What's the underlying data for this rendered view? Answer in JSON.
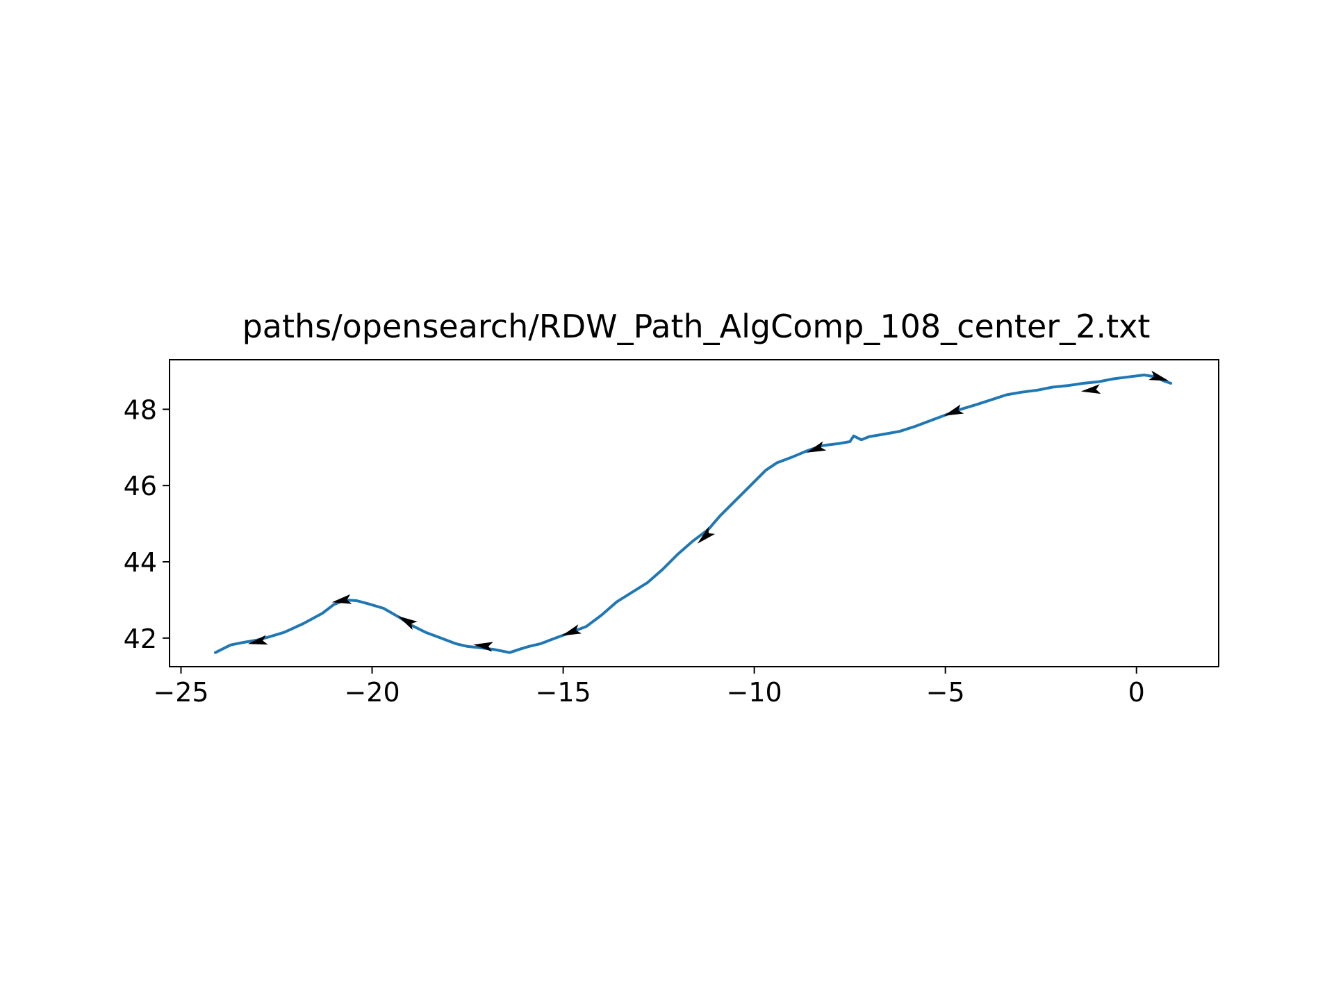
{
  "chart_data": {
    "type": "line",
    "title": "paths/opensearch/RDW_Path_AlgComp_108_center_2.txt",
    "xlabel": "",
    "ylabel": "",
    "xlim": [
      -25.3,
      2.15
    ],
    "ylim": [
      41.25,
      49.3
    ],
    "grid": false,
    "xticks": [
      -25,
      -20,
      -15,
      -10,
      -5,
      0
    ],
    "xtick_labels": [
      "−25",
      "−20",
      "−15",
      "−10",
      "−5",
      "0"
    ],
    "yticks": [
      42,
      44,
      46,
      48
    ],
    "ytick_labels": [
      "42",
      "44",
      "46",
      "48"
    ],
    "colors": {
      "line": "#1f77b4",
      "arrow": "#000000",
      "axes": "#000000",
      "background": "#ffffff"
    },
    "series": [
      {
        "x": [
          -24.1,
          -23.9,
          -23.7,
          -23.4,
          -23.0,
          -22.7,
          -22.3,
          -21.8,
          -21.3,
          -21.0,
          -20.7,
          -20.4,
          -20.1,
          -19.7,
          -19.3,
          -19.0,
          -18.6,
          -18.2,
          -17.8,
          -17.5,
          -17.2,
          -16.8,
          -16.4,
          -16.1,
          -15.9,
          -15.6,
          -15.2,
          -14.8,
          -14.4,
          -14.0,
          -13.6,
          -13.2,
          -12.8,
          -12.4,
          -12.0,
          -11.6,
          -11.2,
          -10.9,
          -10.6,
          -10.3,
          -10.0,
          -9.7,
          -9.4,
          -9.0,
          -8.6,
          -8.2,
          -7.8,
          -7.5,
          -7.4,
          -7.2,
          -7.0,
          -6.6,
          -6.2,
          -5.8,
          -5.4,
          -5.0,
          -4.6,
          -4.2,
          -3.8,
          -3.4,
          -3.0,
          -2.6,
          -2.2,
          -1.8,
          -1.4,
          -1.0,
          -0.6,
          -0.2,
          0.2,
          0.5,
          0.7,
          0.9
        ],
        "y": [
          41.62,
          41.72,
          41.82,
          41.88,
          41.95,
          42.03,
          42.15,
          42.38,
          42.65,
          42.88,
          43.0,
          42.98,
          42.9,
          42.78,
          42.55,
          42.35,
          42.15,
          42.0,
          41.85,
          41.78,
          41.75,
          41.7,
          41.62,
          41.72,
          41.78,
          41.85,
          42.0,
          42.15,
          42.3,
          42.6,
          42.95,
          43.2,
          43.45,
          43.8,
          44.2,
          44.55,
          44.85,
          45.2,
          45.5,
          45.8,
          46.1,
          46.4,
          46.6,
          46.75,
          46.92,
          47.05,
          47.1,
          47.15,
          47.3,
          47.2,
          47.28,
          47.35,
          47.42,
          47.55,
          47.7,
          47.85,
          48.0,
          48.12,
          48.25,
          48.38,
          48.45,
          48.5,
          48.58,
          48.62,
          48.68,
          48.72,
          48.8,
          48.85,
          48.9,
          48.85,
          48.75,
          48.68
        ]
      }
    ],
    "arrows": [
      {
        "x": -23.0,
        "y": 41.9
      },
      {
        "x": -20.8,
        "y": 42.98
      },
      {
        "x": -19.1,
        "y": 42.45
      },
      {
        "x": -17.1,
        "y": 41.8
      },
      {
        "x": -14.8,
        "y": 42.15
      },
      {
        "x": -11.3,
        "y": 44.65
      },
      {
        "x": -8.4,
        "y": 46.95
      },
      {
        "x": -4.8,
        "y": 47.92
      },
      {
        "x": -1.2,
        "y": 48.5
      },
      {
        "x": 0.6,
        "y": 48.82
      }
    ]
  }
}
